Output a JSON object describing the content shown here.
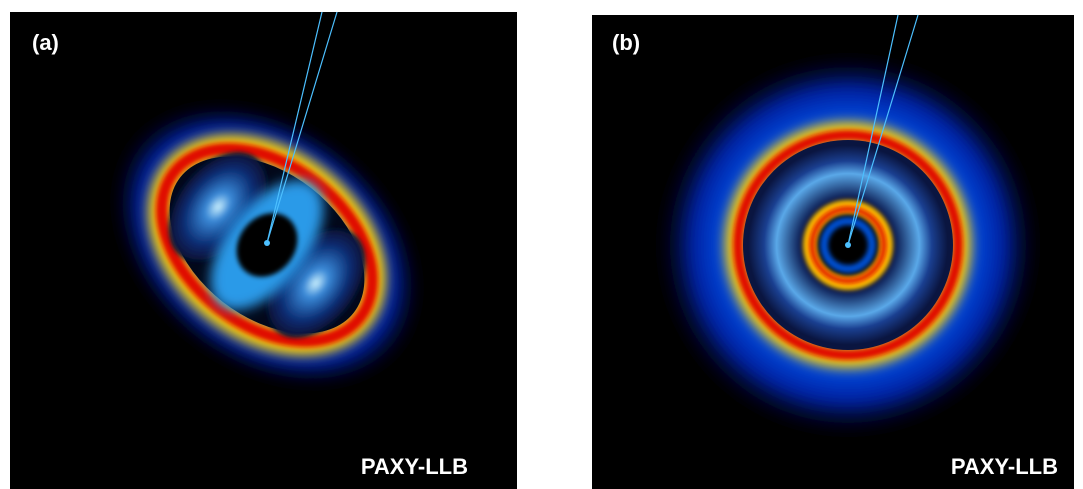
{
  "panels": [
    {
      "label": "(a)",
      "watermark": "PAXY-LLB"
    },
    {
      "label": "(b)",
      "watermark": "PAXY-LLB"
    }
  ]
}
